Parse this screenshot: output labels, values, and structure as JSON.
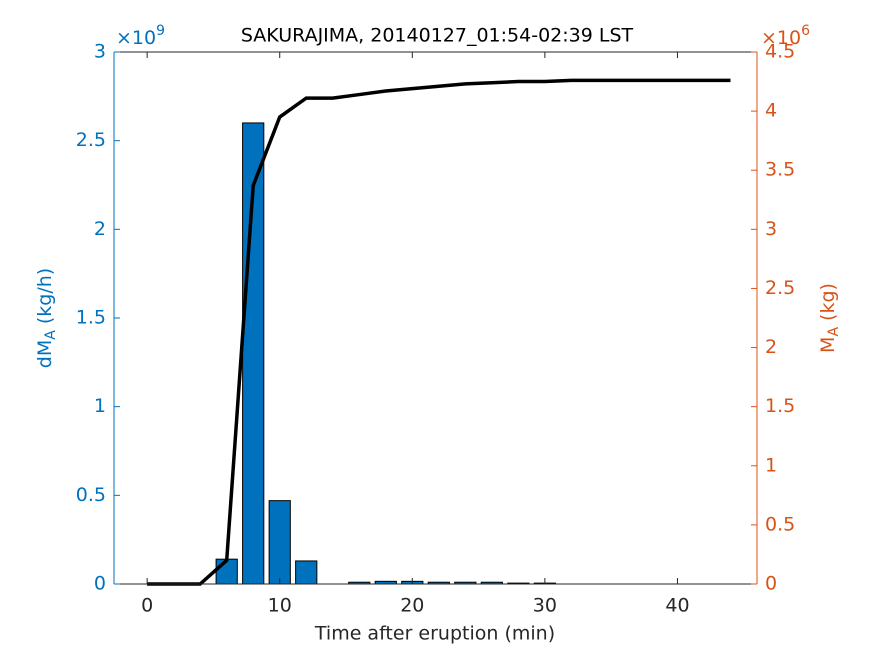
{
  "chart_data": {
    "type": "bar",
    "title": "SAKURAJIMA, 20140127_01:54-02:39 LST",
    "xlabel": "Time after eruption (min)",
    "ylabel": {
      "main": "dM",
      "sub": "A",
      "unit": "(kg/h)"
    },
    "y2label": {
      "main": "M",
      "sub": "A",
      "unit": "(kg)"
    },
    "y_multiplier": {
      "base": "×10",
      "power": "9"
    },
    "y2_multiplier": {
      "base": "×10",
      "power": "6"
    },
    "xlim": [
      -2.5,
      46
    ],
    "xticks": [
      0,
      10,
      20,
      30,
      40
    ],
    "ylim": [
      0,
      3
    ],
    "yticks": [
      0,
      0.5,
      1,
      1.5,
      2,
      2.5,
      3
    ],
    "y2lim": [
      0,
      4.5
    ],
    "y2ticks": [
      0,
      0.5,
      1,
      1.5,
      2,
      2.5,
      3,
      3.5,
      4,
      4.5
    ],
    "y_color": "#0072BD",
    "y2_color": "#D95319",
    "series": [
      {
        "type": "bar",
        "color": "#0072BD",
        "bar_width": 1.6,
        "x": [
          0,
          2,
          4,
          6,
          8,
          10,
          12,
          14,
          16,
          18,
          20,
          22,
          24,
          26,
          28,
          30
        ],
        "values": [
          0,
          0,
          0,
          0.14,
          2.6,
          0.47,
          0.13,
          0,
          0.01,
          0.015,
          0.015,
          0.01,
          0.01,
          0.01,
          0.005,
          0.005
        ]
      },
      {
        "type": "line",
        "axis": "y2",
        "color": "#000000",
        "x": [
          0,
          2,
          4,
          6,
          8,
          10,
          12,
          14,
          16,
          18,
          20,
          22,
          24,
          26,
          28,
          30,
          32,
          34,
          36,
          38,
          40,
          42,
          44
        ],
        "values": [
          0,
          0,
          0,
          0.2,
          3.37,
          3.95,
          4.11,
          4.11,
          4.14,
          4.17,
          4.19,
          4.21,
          4.23,
          4.24,
          4.25,
          4.25,
          4.26,
          4.26,
          4.26,
          4.26,
          4.26,
          4.26,
          4.26
        ]
      }
    ]
  }
}
